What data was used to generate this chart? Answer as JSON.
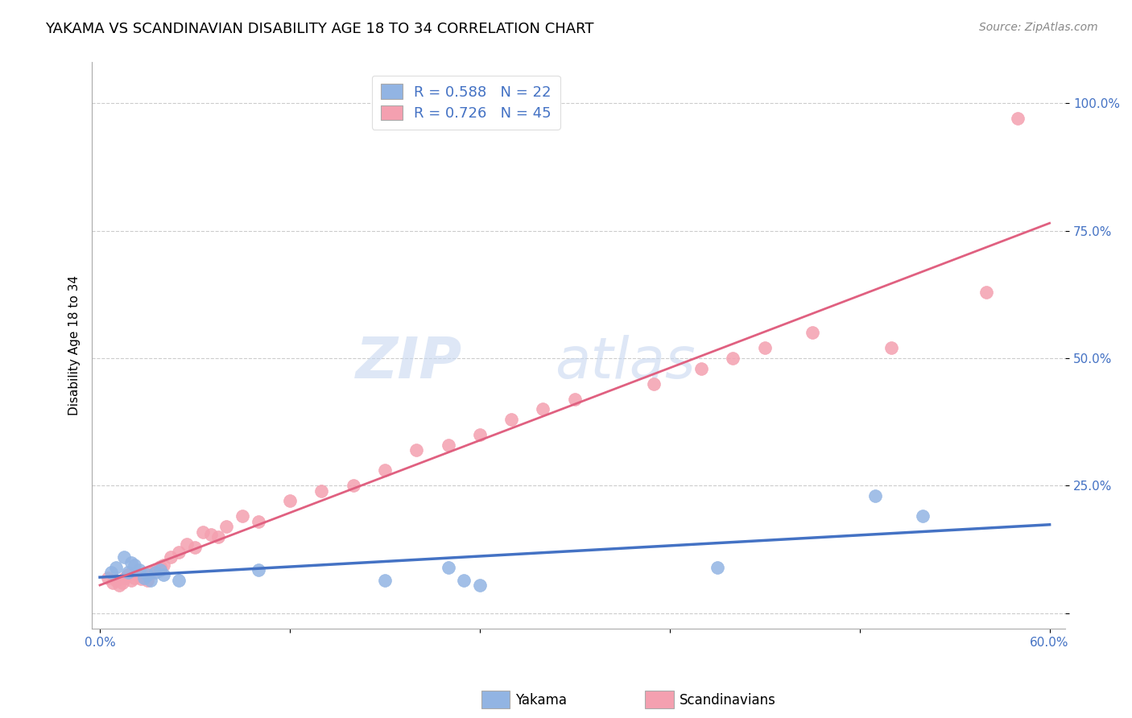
{
  "title": "YAKAMA VS SCANDINAVIAN DISABILITY AGE 18 TO 34 CORRELATION CHART",
  "source": "Source: ZipAtlas.com",
  "ylabel": "Disability Age 18 to 34",
  "xlim": [
    -0.005,
    0.61
  ],
  "ylim": [
    -0.03,
    1.08
  ],
  "yticks": [
    0.0,
    0.25,
    0.5,
    0.75,
    1.0
  ],
  "yticklabels": [
    "",
    "25.0%",
    "50.0%",
    "75.0%",
    "100.0%"
  ],
  "grid_color": "#cccccc",
  "background_color": "#ffffff",
  "watermark_zip": "ZIP",
  "watermark_atlas": "atlas",
  "yakama_color": "#92b4e3",
  "scandinavian_color": "#f4a0b0",
  "yakama_line_color": "#4472c4",
  "scandinavian_line_color": "#e06080",
  "yakama_R": 0.588,
  "yakama_N": 22,
  "scandinavian_R": 0.726,
  "scandinavian_N": 45,
  "yakama_x": [
    0.007,
    0.01,
    0.015,
    0.018,
    0.02,
    0.022,
    0.025,
    0.028,
    0.03,
    0.032,
    0.035,
    0.038,
    0.04,
    0.05,
    0.1,
    0.18,
    0.22,
    0.23,
    0.24,
    0.39,
    0.49,
    0.52
  ],
  "yakama_y": [
    0.08,
    0.09,
    0.11,
    0.08,
    0.1,
    0.095,
    0.085,
    0.07,
    0.075,
    0.065,
    0.08,
    0.085,
    0.075,
    0.065,
    0.085,
    0.065,
    0.09,
    0.065,
    0.055,
    0.09,
    0.23,
    0.19
  ],
  "scandinavian_x": [
    0.005,
    0.008,
    0.01,
    0.012,
    0.014,
    0.016,
    0.018,
    0.02,
    0.022,
    0.024,
    0.026,
    0.028,
    0.03,
    0.032,
    0.035,
    0.038,
    0.04,
    0.045,
    0.05,
    0.055,
    0.06,
    0.065,
    0.07,
    0.075,
    0.08,
    0.09,
    0.1,
    0.12,
    0.14,
    0.16,
    0.18,
    0.2,
    0.22,
    0.24,
    0.26,
    0.28,
    0.3,
    0.35,
    0.38,
    0.4,
    0.42,
    0.45,
    0.5,
    0.56,
    0.58
  ],
  "scandinavian_y": [
    0.07,
    0.06,
    0.065,
    0.055,
    0.06,
    0.07,
    0.075,
    0.065,
    0.07,
    0.075,
    0.068,
    0.072,
    0.065,
    0.08,
    0.085,
    0.092,
    0.095,
    0.11,
    0.12,
    0.135,
    0.13,
    0.16,
    0.155,
    0.15,
    0.17,
    0.19,
    0.18,
    0.22,
    0.24,
    0.25,
    0.28,
    0.32,
    0.33,
    0.35,
    0.38,
    0.4,
    0.42,
    0.45,
    0.48,
    0.5,
    0.52,
    0.55,
    0.52,
    0.63,
    0.97
  ],
  "title_fontsize": 13,
  "axis_label_fontsize": 11,
  "tick_fontsize": 11,
  "legend_fontsize": 13,
  "source_fontsize": 10
}
